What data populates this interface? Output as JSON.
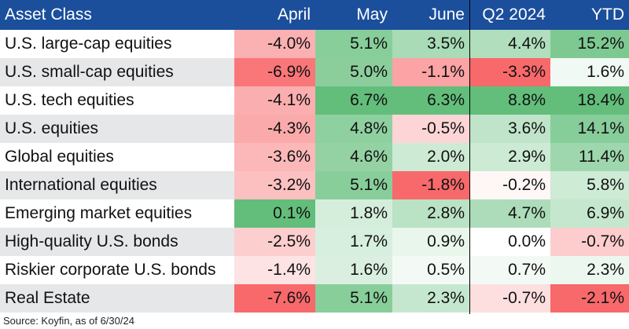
{
  "chart_data": {
    "type": "heatmap",
    "title": "",
    "row_header": "Asset Class",
    "columns": [
      "April",
      "May",
      "June",
      "Q2 2024",
      "YTD"
    ],
    "rows": [
      {
        "name": "U.S. large-cap equities",
        "values": [
          -4.0,
          5.1,
          3.5,
          4.4,
          15.2
        ],
        "labels": [
          "-4.0%",
          "5.1%",
          "3.5%",
          "4.4%",
          "15.2%"
        ]
      },
      {
        "name": "U.S. small-cap equities",
        "values": [
          -6.9,
          5.0,
          -1.1,
          -3.3,
          1.6
        ],
        "labels": [
          "-6.9%",
          "5.0%",
          "-1.1%",
          "-3.3%",
          "1.6%"
        ]
      },
      {
        "name": "U.S. tech equities",
        "values": [
          -4.1,
          6.7,
          6.3,
          8.8,
          18.4
        ],
        "labels": [
          "-4.1%",
          "6.7%",
          "6.3%",
          "8.8%",
          "18.4%"
        ]
      },
      {
        "name": "U.S. equities",
        "values": [
          -4.3,
          4.8,
          -0.5,
          3.6,
          14.1
        ],
        "labels": [
          "-4.3%",
          "4.8%",
          "-0.5%",
          "3.6%",
          "14.1%"
        ]
      },
      {
        "name": "Global equities",
        "values": [
          -3.6,
          4.6,
          2.0,
          2.9,
          11.4
        ],
        "labels": [
          "-3.6%",
          "4.6%",
          "2.0%",
          "2.9%",
          "11.4%"
        ]
      },
      {
        "name": "International equities",
        "values": [
          -3.2,
          5.1,
          -1.8,
          -0.2,
          5.8
        ],
        "labels": [
          "-3.2%",
          "5.1%",
          "-1.8%",
          "-0.2%",
          "5.8%"
        ]
      },
      {
        "name": "Emerging market equities",
        "values": [
          0.1,
          1.8,
          2.8,
          4.7,
          6.9
        ],
        "labels": [
          "0.1%",
          "1.8%",
          "2.8%",
          "4.7%",
          "6.9%"
        ]
      },
      {
        "name": "High-quality U.S. bonds",
        "values": [
          -2.5,
          1.7,
          0.9,
          0.0,
          -0.7
        ],
        "labels": [
          "-2.5%",
          "1.7%",
          "0.9%",
          "0.0%",
          "-0.7%"
        ]
      },
      {
        "name": "Riskier corporate U.S. bonds",
        "values": [
          -1.4,
          1.6,
          0.5,
          0.7,
          2.3
        ],
        "labels": [
          "-1.4%",
          "1.6%",
          "0.5%",
          "0.7%",
          "2.3%"
        ]
      },
      {
        "name": "Real Estate",
        "values": [
          -7.6,
          5.1,
          2.3,
          -0.7,
          -2.1
        ],
        "labels": [
          "-7.6%",
          "5.1%",
          "2.3%",
          "-0.7%",
          "-2.1%"
        ]
      }
    ],
    "source": "Source: Koyfin, as of 6/30/24",
    "colors": {
      "header_bg": "#1b4f9c",
      "header_text": "#ffffff",
      "label_bg_odd": "#ffffff",
      "label_bg_even": "#e6e7e8",
      "negative": "#f8696b",
      "neutral": "#ffffff",
      "positive": "#63be7b"
    }
  }
}
